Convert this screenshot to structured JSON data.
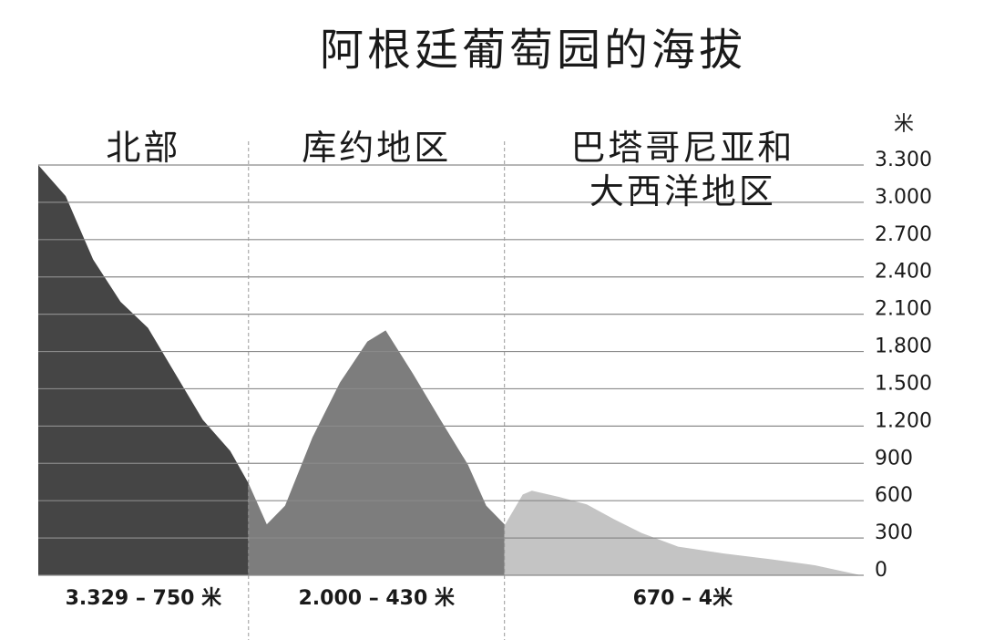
{
  "chart_data": {
    "type": "area",
    "title": "阿根廷葡萄园的海拔",
    "y_label": "米",
    "x": [
      0,
      3,
      6,
      9,
      12,
      15,
      18,
      21,
      23,
      25,
      27,
      30,
      33,
      36,
      38,
      41,
      44,
      47,
      49,
      51,
      53,
      54,
      57,
      60,
      63,
      66,
      70,
      75,
      80,
      85,
      90
    ],
    "xlim": [
      0,
      90
    ],
    "ylim": [
      0,
      3300
    ],
    "yticks": [
      0,
      300,
      600,
      900,
      {
        "value": 1200,
        "label": "1.200"
      },
      {
        "value": 1500,
        "label": "1.500"
      },
      {
        "value": 1800,
        "label": "1.800"
      },
      {
        "value": 2100,
        "label": "2.100"
      },
      {
        "value": 2400,
        "label": "2.400"
      },
      {
        "value": 2700,
        "label": "2.700"
      },
      {
        "value": 3000,
        "label": "3.000"
      },
      {
        "value": 3300,
        "label": "3.300"
      }
    ],
    "grid": true,
    "series": [
      {
        "name": "北部",
        "range_label": "3.329 – 750 米",
        "color": "#454545",
        "values": [
          3300,
          3050,
          2540,
          2200,
          1990,
          1620,
          1250,
          1000,
          740,
          null,
          null,
          null,
          null,
          null,
          null,
          null,
          null,
          null,
          null,
          null,
          null,
          null,
          null,
          null,
          null,
          null,
          null,
          null,
          null,
          null,
          null
        ]
      },
      {
        "name": "库约地区",
        "range_label": "2.000 – 430 米",
        "color": "#7d7d7d",
        "values": [
          null,
          null,
          null,
          null,
          null,
          null,
          null,
          null,
          740,
          410,
          560,
          1110,
          1550,
          1880,
          1970,
          1620,
          1250,
          890,
          560,
          410,
          null,
          null,
          null,
          null,
          null,
          null,
          null,
          null,
          null,
          null,
          null
        ]
      },
      {
        "name": "巴塔哥尼亚和大西洋地区",
        "range_label": "670 – 4米",
        "color": "#c4c4c4",
        "values": [
          null,
          null,
          null,
          null,
          null,
          null,
          null,
          null,
          null,
          null,
          null,
          null,
          null,
          null,
          null,
          null,
          null,
          null,
          null,
          400,
          650,
          680,
          630,
          570,
          450,
          340,
          230,
          175,
          130,
          80,
          0
        ]
      }
    ]
  }
}
